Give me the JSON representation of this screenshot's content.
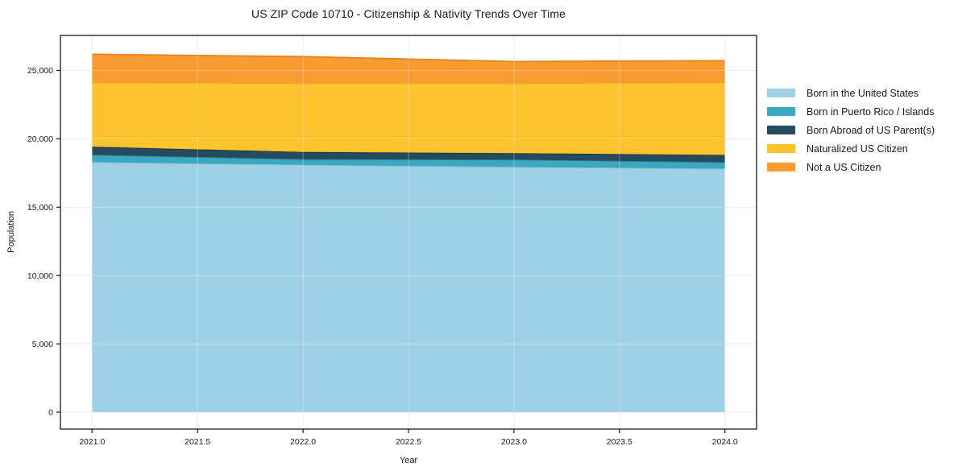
{
  "chart_data": {
    "type": "area",
    "stacked": true,
    "title": "US ZIP Code 10710 - Citizenship & Nativity Trends Over Time",
    "xlabel": "Year",
    "ylabel": "Population",
    "x": [
      2021,
      2022,
      2023,
      2024
    ],
    "series": [
      {
        "name": "Born in the United States",
        "values": [
          18300,
          18100,
          17950,
          17820
        ],
        "color": "#9fd1e6",
        "edge": "#7fb8d4"
      },
      {
        "name": "Born in Puerto Rico / Islands",
        "values": [
          530,
          410,
          530,
          470
        ],
        "color": "#3ca8c0",
        "edge": "#2a8099"
      },
      {
        "name": "Born Abroad of US Parent(s)",
        "values": [
          590,
          530,
          470,
          530
        ],
        "color": "#254b5e",
        "edge": "#1a3848"
      },
      {
        "name": "Naturalized US Citizen",
        "values": [
          4700,
          5030,
          5120,
          5300
        ],
        "color": "#fdc32f",
        "edge": "#e5a914"
      },
      {
        "name": "Not a US Citizen",
        "values": [
          2060,
          1940,
          1580,
          1590
        ],
        "color": "#f89b30",
        "edge": "#e8831e"
      }
    ],
    "totals": [
      26180,
      26010,
      25650,
      25710
    ],
    "xlim": [
      2020.85,
      2024.15
    ],
    "ylim": [
      -1235,
      27560
    ],
    "xticks": [
      2021.0,
      2021.5,
      2022.0,
      2022.5,
      2023.0,
      2023.5,
      2024.0
    ],
    "xtick_labels": [
      "2021.0",
      "2021.5",
      "2022.0",
      "2022.5",
      "2023.0",
      "2023.5",
      "2024.0"
    ],
    "yticks": [
      0,
      5000,
      10000,
      15000,
      20000,
      25000
    ],
    "ytick_labels": [
      "0",
      "5,000",
      "10,000",
      "15,000",
      "20,000",
      "25,000"
    ],
    "grid": true,
    "legend_position": "right",
    "grid_color": "#e7e7e7",
    "axis_color": "#1a1a1a",
    "background_color": "#ffffff"
  }
}
